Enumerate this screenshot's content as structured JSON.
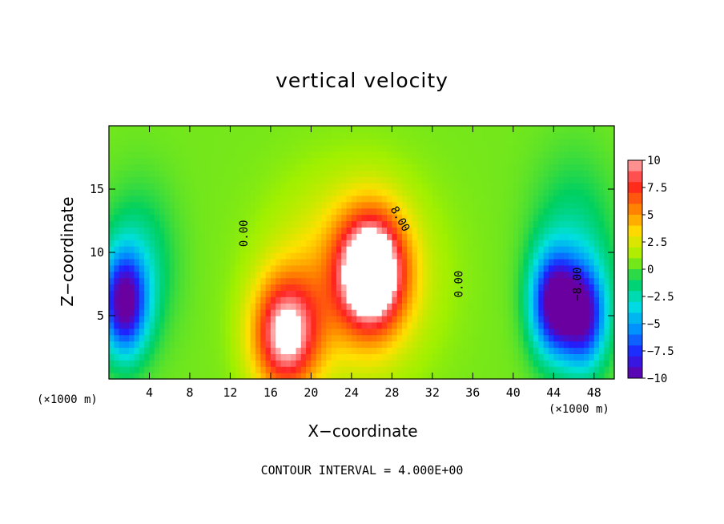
{
  "chart_data": {
    "type": "heatmap",
    "title": "vertical velocity",
    "xlabel": "X−coordinate",
    "ylabel": "Z−coordinate",
    "x_unit_label": "(×1000 m)",
    "footer": "CONTOUR INTERVAL = 4.000E+00",
    "xlim": [
      0,
      50
    ],
    "ylim": [
      0,
      20
    ],
    "x_ticks": [
      "4",
      "8",
      "12",
      "16",
      "20",
      "24",
      "28",
      "32",
      "36",
      "40",
      "44",
      "48"
    ],
    "x_tick_values": [
      4,
      8,
      12,
      16,
      20,
      24,
      28,
      32,
      36,
      40,
      44,
      48
    ],
    "y_ticks": [
      "5",
      "10",
      "15"
    ],
    "y_tick_values": [
      5,
      10,
      15
    ],
    "colorbar": {
      "labels": [
        "10",
        "7.5",
        "5",
        "2.5",
        "0",
        "−2.5",
        "−5",
        "−7.5",
        "−10"
      ],
      "values": [
        10,
        7.5,
        5,
        2.5,
        0,
        -2.5,
        -5,
        -7.5,
        -10
      ],
      "range": [
        -10,
        10
      ]
    },
    "contour_labels": [
      "0.00",
      "8.00",
      "0.00",
      "−8.00"
    ],
    "contour_interval": 4.0,
    "features": [
      {
        "kind": "updraft",
        "x_center": 26,
        "z_center": 8.5,
        "peak": 12
      },
      {
        "kind": "updraft",
        "x_center": 17.5,
        "z_center": 3.5,
        "peak": 10
      },
      {
        "kind": "downdraft",
        "x_center": 1.5,
        "z_center": 6,
        "peak": -10
      },
      {
        "kind": "downdraft",
        "x_center": 44,
        "z_center": 6,
        "peak": -10
      },
      {
        "kind": "downdraft",
        "x_center": 47,
        "z_center": 5,
        "peak": -9
      }
    ],
    "colors": {
      "scale": [
        "#6a00a0",
        "#2020ff",
        "#0090ff",
        "#00e0e0",
        "#00d060",
        "#a0f000",
        "#ffe000",
        "#ff8000",
        "#ff2020",
        "#ffb0b0"
      ]
    }
  }
}
